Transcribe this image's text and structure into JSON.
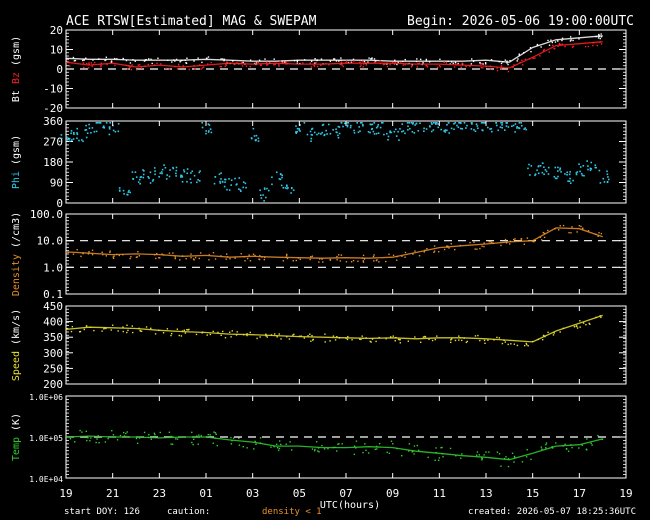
{
  "header": {
    "title": "ACE RTSW[Estimated] MAG & SWEPAM",
    "begin": "Begin: 2026-05-06 19:00:00UTC"
  },
  "footer": {
    "start_doy": "start DOY: 126",
    "caution": "caution:",
    "density_note": "density < 1",
    "created": "created: 2026-05-07 18:25:36UTC"
  },
  "colors": {
    "bt": "#ffffff",
    "bz": "#ff2020",
    "phi": "#2ec8e8",
    "density": "#e8902a",
    "speed": "#e8e030",
    "temp": "#30d030",
    "axis": "#ffffff"
  },
  "chart_data": [
    {
      "type": "line",
      "name": "mag",
      "ylabel_parts": [
        {
          "text": "Bt",
          "color": "#ffffff"
        },
        {
          "text": " ",
          "color": "#ffffff"
        },
        {
          "text": "Bz",
          "color": "#ff2020"
        },
        {
          "text": " (gsm)",
          "color": "#ffffff"
        }
      ],
      "yticks": [
        "20",
        "10",
        "0",
        "-10",
        "-20"
      ],
      "ylim": [
        -20,
        20
      ],
      "dashed_lines": [
        0
      ],
      "x": [
        0,
        1,
        2,
        3,
        4,
        5,
        6,
        7,
        8,
        9,
        10,
        11,
        12,
        13,
        14,
        15,
        16,
        17,
        18,
        19,
        20,
        21,
        22,
        23
      ],
      "series": [
        {
          "name": "Bt",
          "color": "#ffffff",
          "values": [
            5.5,
            5,
            5,
            4.5,
            4.5,
            4.5,
            5,
            4.5,
            4,
            4,
            4.5,
            4.5,
            4.5,
            4.5,
            4,
            4,
            4,
            4,
            4.5,
            3.5,
            11,
            15,
            16,
            17
          ]
        },
        {
          "name": "Bz",
          "color": "#ff2020",
          "values": [
            3.5,
            2,
            3,
            1,
            2,
            1,
            2,
            3,
            2.5,
            3,
            2.5,
            2.5,
            3,
            3,
            3,
            2.5,
            2.5,
            2,
            1.5,
            0.5,
            6,
            12,
            13,
            14
          ]
        }
      ]
    },
    {
      "type": "scatter",
      "name": "phi",
      "ylabel_parts": [
        {
          "text": "Phi",
          "color": "#2ec8e8"
        },
        {
          "text": " (gsm)",
          "color": "#ffffff"
        }
      ],
      "yticks": [
        "360",
        "270",
        "180",
        "90",
        "0"
      ],
      "ylim": [
        0,
        360
      ],
      "x": [
        0,
        0.5,
        1,
        1.5,
        2,
        2.5,
        3,
        3.5,
        4,
        4.5,
        5,
        5.5,
        6,
        6.5,
        7,
        7.5,
        8,
        8.5,
        9,
        9.5,
        10,
        10.5,
        11,
        11.5,
        12,
        12.5,
        13,
        13.5,
        14,
        14.5,
        15,
        15.5,
        16,
        16.5,
        17,
        17.5,
        18,
        18.5,
        19,
        19.5,
        20,
        20.5,
        21,
        21.5,
        22,
        22.5,
        23
      ],
      "values": [
        290,
        300,
        320,
        345,
        330,
        60,
        110,
        120,
        140,
        130,
        125,
        115,
        335,
        110,
        90,
        85,
        300,
        40,
        110,
        70,
        335,
        300,
        330,
        320,
        345,
        340,
        335,
        330,
        310,
        335,
        340,
        345,
        345,
        340,
        340,
        345,
        345,
        345,
        340,
        345,
        155,
        150,
        140,
        120,
        150,
        170,
        120
      ]
    },
    {
      "type": "line",
      "name": "density",
      "ylabel_parts": [
        {
          "text": "Density",
          "color": "#e8902a"
        },
        {
          "text": " (/cm3)",
          "color": "#ffffff"
        }
      ],
      "log": true,
      "yticks": [
        "100.0",
        "10.0",
        "1.0",
        "0.1"
      ],
      "ylim": [
        0.1,
        100
      ],
      "dashed_lines": [
        10,
        1
      ],
      "x": [
        0,
        1,
        2,
        3,
        4,
        5,
        6,
        7,
        8,
        9,
        10,
        11,
        12,
        13,
        14,
        15,
        16,
        17,
        18,
        19,
        20,
        21,
        22,
        23
      ],
      "series": [
        {
          "name": "Density",
          "color": "#e8902a",
          "values": [
            3.8,
            3.4,
            3.0,
            3.2,
            3.0,
            2.6,
            2.8,
            2.4,
            2.6,
            2.4,
            2.3,
            2.2,
            2.3,
            2.2,
            2.4,
            3.6,
            5.5,
            6.5,
            7.5,
            9,
            10,
            30,
            28,
            14
          ]
        }
      ]
    },
    {
      "type": "line",
      "name": "speed",
      "ylabel_parts": [
        {
          "text": "Speed",
          "color": "#e8e030"
        },
        {
          "text": " (km/s)",
          "color": "#ffffff"
        }
      ],
      "yticks": [
        "450",
        "400",
        "350",
        "300",
        "250",
        "200"
      ],
      "ylim": [
        200,
        450
      ],
      "x": [
        0,
        1,
        2,
        3,
        4,
        5,
        6,
        7,
        8,
        9,
        10,
        11,
        12,
        13,
        14,
        15,
        16,
        17,
        18,
        19,
        20,
        21,
        22,
        23
      ],
      "series": [
        {
          "name": "Speed",
          "color": "#e8e030",
          "values": [
            375,
            382,
            380,
            378,
            372,
            368,
            365,
            360,
            358,
            355,
            352,
            350,
            348,
            346,
            348,
            345,
            348,
            348,
            345,
            340,
            335,
            370,
            395,
            420
          ]
        }
      ]
    },
    {
      "type": "line",
      "name": "temp",
      "ylabel_parts": [
        {
          "text": "Temp",
          "color": "#30d030"
        },
        {
          "text": " (K)",
          "color": "#ffffff"
        }
      ],
      "log": true,
      "yticks": [
        "1.0E+06",
        "1.0E+05",
        "1.0E+04"
      ],
      "ylim": [
        10000,
        1000000
      ],
      "dashed_lines": [
        100000
      ],
      "x": [
        0,
        1,
        2,
        3,
        4,
        5,
        6,
        7,
        8,
        9,
        10,
        11,
        12,
        13,
        14,
        15,
        16,
        17,
        18,
        19,
        20,
        21,
        22,
        23
      ],
      "series": [
        {
          "name": "Temp",
          "color": "#30d030",
          "values": [
            100000,
            105000,
            100000,
            100000,
            95000,
            100000,
            100000,
            85000,
            75000,
            60000,
            60000,
            55000,
            55000,
            58000,
            55000,
            45000,
            40000,
            35000,
            32000,
            28000,
            40000,
            60000,
            65000,
            90000
          ]
        }
      ]
    }
  ],
  "x_axis": {
    "ticks": [
      "19",
      "21",
      "23",
      "01",
      "03",
      "05",
      "07",
      "09",
      "11",
      "13",
      "15",
      "17",
      "19"
    ],
    "label": "UTC(hours)"
  }
}
